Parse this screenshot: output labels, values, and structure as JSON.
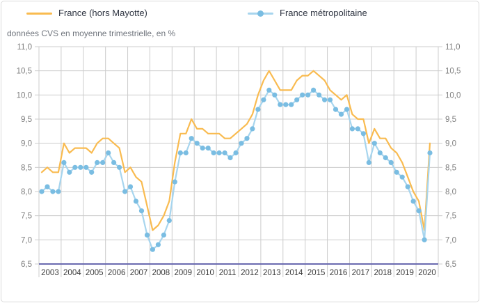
{
  "legend": {
    "items": [
      {
        "label": "France (hors Mayotte)",
        "color": "#f9bb50",
        "marker": false
      },
      {
        "label": "France métropolitaine",
        "color": "#a7d5ee",
        "marker_color": "#7abde2",
        "marker": true
      }
    ]
  },
  "subtitle": "données CVS en moyenne trimestrielle, en %",
  "chart_data": {
    "type": "line",
    "title": "",
    "subtitle": "données CVS en moyenne trimestrielle, en %",
    "xlabel": "",
    "ylabel": "",
    "x_unit": "quarter",
    "years": [
      2003,
      2004,
      2005,
      2006,
      2007,
      2008,
      2009,
      2010,
      2011,
      2012,
      2013,
      2014,
      2015,
      2016,
      2017,
      2018,
      2019,
      2020
    ],
    "ylim": [
      6.5,
      11.0
    ],
    "ytick_step": 0.5,
    "ytick_labels": [
      "6,5",
      "7,0",
      "7,5",
      "8,0",
      "8,5",
      "9,0",
      "9,5",
      "10,0",
      "10,5",
      "11,0"
    ],
    "grid": true,
    "dual_y_axis": true,
    "legend_position": "top",
    "decimal_separator": ",",
    "colors": {
      "grid": "#cccccc",
      "axis_line": "#6a6ab0",
      "ytick_label": "#7d7d7d",
      "xtick_label": "#3a3a3a"
    },
    "series": [
      {
        "name": "France (hors Mayotte)",
        "color": "#f9bb50",
        "marker": false,
        "values": [
          8.4,
          8.5,
          8.4,
          8.4,
          9.0,
          8.8,
          8.9,
          8.9,
          8.9,
          8.8,
          9.0,
          9.1,
          9.1,
          9.0,
          8.9,
          8.4,
          8.5,
          8.3,
          8.2,
          7.7,
          7.2,
          7.3,
          7.5,
          7.8,
          8.6,
          9.2,
          9.2,
          9.5,
          9.3,
          9.3,
          9.2,
          9.2,
          9.2,
          9.1,
          9.1,
          9.2,
          9.3,
          9.4,
          9.6,
          10.0,
          10.3,
          10.5,
          10.3,
          10.1,
          10.1,
          10.1,
          10.3,
          10.4,
          10.4,
          10.5,
          10.4,
          10.3,
          10.1,
          10.0,
          9.9,
          10.0,
          9.6,
          9.5,
          9.5,
          9.0,
          9.3,
          9.1,
          9.1,
          8.9,
          8.8,
          8.6,
          8.3,
          8.0,
          7.8,
          7.2,
          9.0
        ]
      },
      {
        "name": "France métropolitaine",
        "color": "#a7d5ee",
        "marker": true,
        "marker_color": "#7abde2",
        "values": [
          8.0,
          8.1,
          8.0,
          8.0,
          8.6,
          8.4,
          8.5,
          8.5,
          8.5,
          8.4,
          8.6,
          8.6,
          8.8,
          8.6,
          8.5,
          8.0,
          8.1,
          7.8,
          7.6,
          7.1,
          6.8,
          6.9,
          7.1,
          7.4,
          8.2,
          8.8,
          8.8,
          9.1,
          9.0,
          8.9,
          8.9,
          8.8,
          8.8,
          8.8,
          8.7,
          8.8,
          9.0,
          9.1,
          9.3,
          9.7,
          9.9,
          10.1,
          10.0,
          9.8,
          9.8,
          9.8,
          9.9,
          10.0,
          10.0,
          10.1,
          10.0,
          9.9,
          9.9,
          9.7,
          9.6,
          9.7,
          9.3,
          9.3,
          9.2,
          8.6,
          9.0,
          8.8,
          8.7,
          8.6,
          8.4,
          8.3,
          8.1,
          7.8,
          7.6,
          7.0,
          8.8
        ]
      }
    ]
  }
}
